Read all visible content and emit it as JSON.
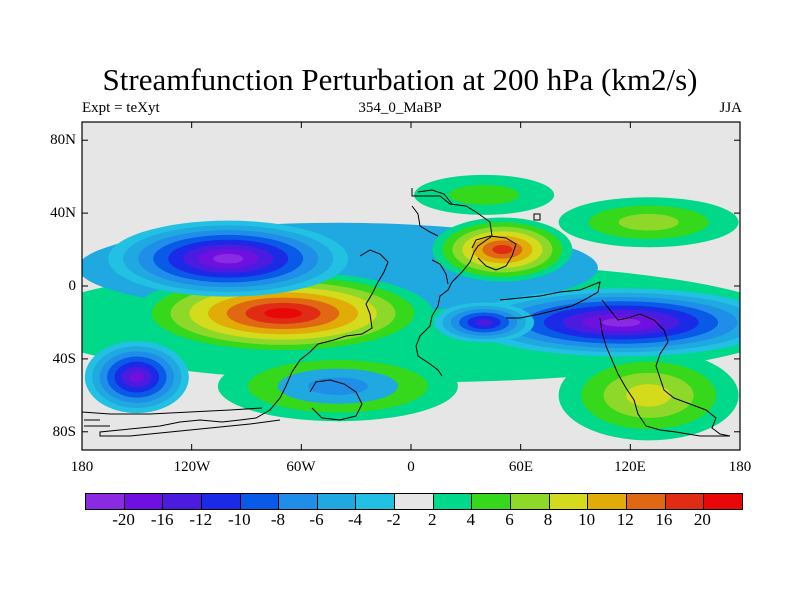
{
  "title": "Streamfunction Perturbation at 200 hPa (km2/s)",
  "left_string": "Expt = teXyt",
  "center_string": "354_0_MaBP",
  "right_string": "JJA",
  "y_ticks": [
    "80N",
    "40N",
    "0",
    "40S",
    "80S"
  ],
  "x_ticks": [
    "180",
    "120W",
    "60W",
    "0",
    "60E",
    "120E",
    "180"
  ],
  "colorbar": {
    "labels": [
      "-20",
      "-16",
      "-12",
      "-10",
      "-8",
      "-6",
      "-4",
      "-2",
      "2",
      "4",
      "6",
      "8",
      "10",
      "12",
      "16",
      "20"
    ],
    "colors": [
      "#8a2be2",
      "#7010e0",
      "#4b1ce0",
      "#1a2ae6",
      "#0a5ae8",
      "#1e8ee8",
      "#20a8e0",
      "#22c0e2",
      "#e6e6e6",
      "#00d88a",
      "#36d81c",
      "#8ed82a",
      "#d4da1c",
      "#e2ac08",
      "#e06812",
      "#e02c14",
      "#e80808"
    ]
  },
  "chart_data": {
    "type": "heatmap",
    "title": "Streamfunction Perturbation at 200 hPa (km2/s)",
    "x_range": [
      -180,
      180
    ],
    "y_range": [
      -90,
      90
    ],
    "levels": [
      -20,
      -16,
      -12,
      -10,
      -8,
      -6,
      -4,
      -2,
      2,
      4,
      6,
      8,
      10,
      12,
      16,
      20
    ],
    "features": [
      {
        "kind": "max",
        "lon": -70,
        "lat": -15,
        "value": 20
      },
      {
        "kind": "max",
        "lon": 50,
        "lat": 20,
        "value": 14
      },
      {
        "kind": "min",
        "lon": -100,
        "lat": 15,
        "value": -20
      },
      {
        "kind": "min",
        "lon": 115,
        "lat": -20,
        "value": -20
      },
      {
        "kind": "min",
        "lon": -150,
        "lat": -50,
        "value": -14
      },
      {
        "kind": "min",
        "lon": 40,
        "lat": -20,
        "value": -12
      }
    ]
  }
}
